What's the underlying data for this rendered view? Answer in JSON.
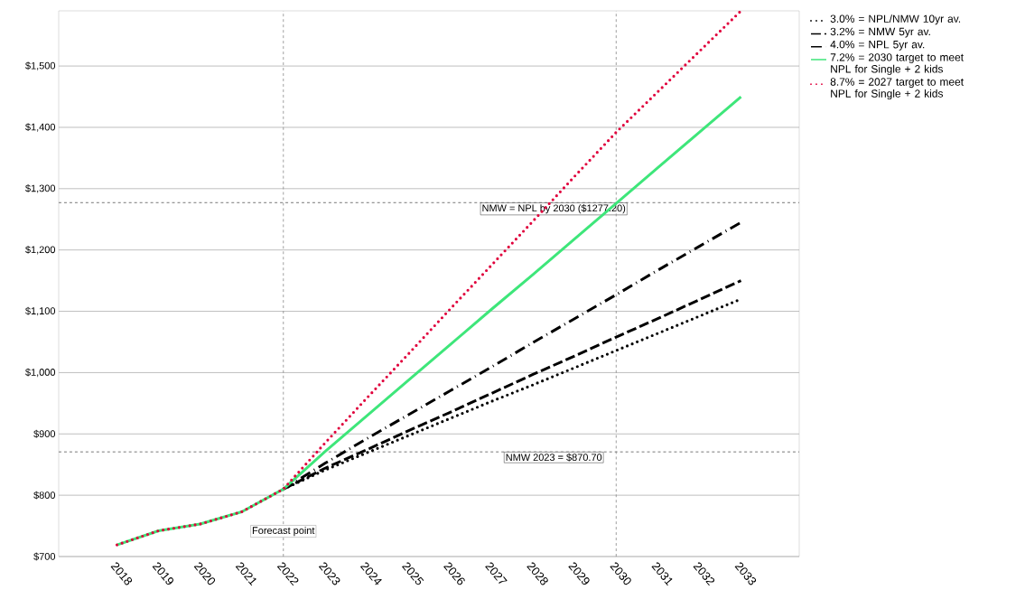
{
  "chart_data": {
    "type": "line",
    "x": [
      2018,
      2019,
      2020,
      2021,
      2022,
      2023,
      2024,
      2025,
      2026,
      2027,
      2028,
      2029,
      2030,
      2031,
      2032,
      2033
    ],
    "series": [
      {
        "name": "3.0% = NPL/NMW 10yr av.",
        "color": "#000000",
        "line_style": "dotted",
        "values": [
          null,
          null,
          null,
          null,
          810,
          841,
          869,
          897,
          925,
          953,
          980,
          1008,
          1036,
          1064,
          1092,
          1120
        ]
      },
      {
        "name": "3.2% = NMW 5yr av.",
        "color": "#000000",
        "line_style": "dashed",
        "values": [
          null,
          null,
          null,
          null,
          810,
          844,
          874,
          905,
          935,
          966,
          997,
          1027,
          1058,
          1088,
          1119,
          1150
        ]
      },
      {
        "name": "4.0% = NPL 5yr av.",
        "color": "#000000",
        "line_style": "dashdot",
        "values": [
          null,
          null,
          null,
          null,
          810,
          852,
          892,
          931,
          970,
          1009,
          1049,
          1088,
          1127,
          1167,
          1206,
          1245
        ]
      },
      {
        "name": "7.2% = 2030 target to meet NPL for Single + 2 kids",
        "color": "#3ee67a",
        "line_style": "solid",
        "values": [
          719,
          742,
          753,
          773,
          810,
          871,
          929,
          987,
          1045,
          1103,
          1160,
          1218,
          1276,
          1334,
          1392,
          1450
        ]
      },
      {
        "name": "8.7% = 2027 target to meet NPL for Single + 2 kids",
        "color": "#e0003c",
        "line_style": "dotted",
        "values": [
          719,
          742,
          753,
          773,
          810,
          885,
          958,
          1030,
          1103,
          1175,
          1247,
          1320,
          1392,
          1458,
          1524,
          1590
        ]
      }
    ],
    "xlim": [
      2016.6,
      2034.4
    ],
    "xticks": [
      2018,
      2019,
      2020,
      2021,
      2022,
      2023,
      2024,
      2025,
      2026,
      2027,
      2028,
      2029,
      2030,
      2031,
      2032,
      2033
    ],
    "ylim": [
      700,
      1590
    ],
    "yticks": [
      {
        "value": 700,
        "label": "$700"
      },
      {
        "value": 800,
        "label": "$800"
      },
      {
        "value": 900,
        "label": "$900"
      },
      {
        "value": 1000,
        "label": "$1,000"
      },
      {
        "value": 1100,
        "label": "$1,100"
      },
      {
        "value": 1200,
        "label": "$1,200"
      },
      {
        "value": 1300,
        "label": "$1,300"
      },
      {
        "value": 1400,
        "label": "$1,400"
      },
      {
        "value": 1500,
        "label": "$1,500"
      }
    ],
    "ref_lines": [
      {
        "axis": "y",
        "value": 1277.2,
        "label": "NMW = NPL by 2030 ($1277.20)",
        "color": "#555555",
        "line_style": "dashed"
      },
      {
        "axis": "y",
        "value": 870.7,
        "label": "NMW 2023 = $870.70",
        "color": "#555555",
        "line_style": "dashed"
      },
      {
        "axis": "x",
        "value": 2022,
        "label": "Forecast point",
        "color": "#888888",
        "line_style": "dashed"
      },
      {
        "axis": "x",
        "value": 2030,
        "color": "#888888",
        "line_style": "dashed"
      }
    ],
    "grid": "y",
    "legend": "top right"
  }
}
